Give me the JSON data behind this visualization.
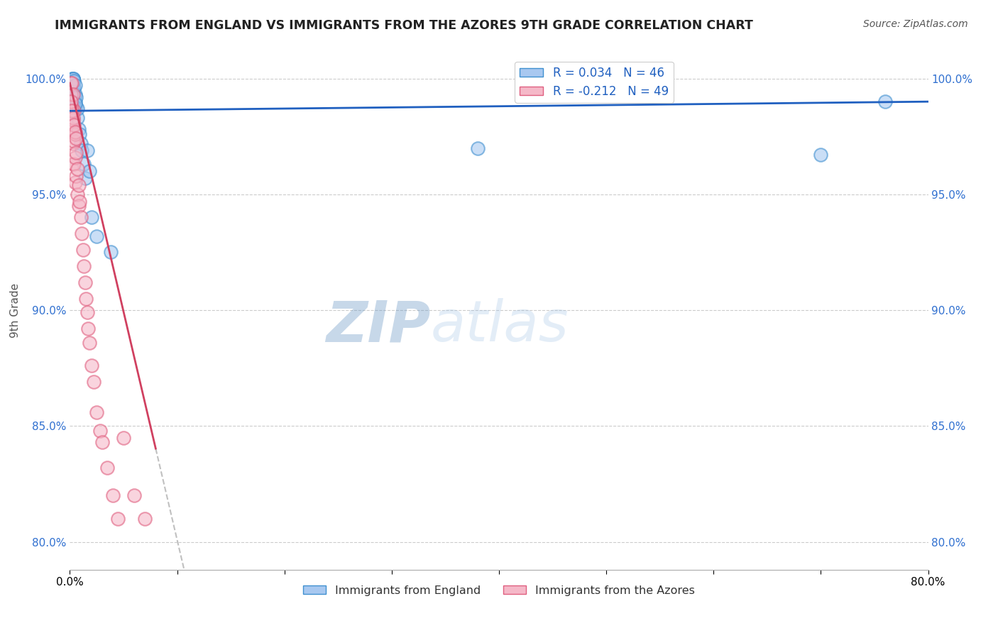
{
  "title": "IMMIGRANTS FROM ENGLAND VS IMMIGRANTS FROM THE AZORES 9TH GRADE CORRELATION CHART",
  "source": "Source: ZipAtlas.com",
  "ylabel": "9th Grade",
  "xlim": [
    0.0,
    0.8
  ],
  "ylim": [
    0.788,
    1.012
  ],
  "yticks": [
    0.8,
    0.85,
    0.9,
    0.95,
    1.0
  ],
  "ytick_labels": [
    "80.0%",
    "85.0%",
    "90.0%",
    "95.0%",
    "100.0%"
  ],
  "xticks": [
    0.0,
    0.1,
    0.2,
    0.3,
    0.4,
    0.5,
    0.6,
    0.7,
    0.8
  ],
  "xtick_labels": [
    "0.0%",
    "",
    "",
    "",
    "",
    "",
    "",
    "",
    "80.0%"
  ],
  "blue_color": "#a8c8f0",
  "blue_edge_color": "#4090d0",
  "blue_line_color": "#2060c0",
  "pink_color": "#f5b8c8",
  "pink_edge_color": "#e06080",
  "pink_line_color": "#d04060",
  "blue_legend_label": "R = 0.034   N = 46",
  "pink_legend_label": "R = -0.212   N = 49",
  "legend_label_england": "Immigrants from England",
  "legend_label_azores": "Immigrants from the Azores",
  "watermark_zip": "ZIP",
  "watermark_atlas": "atlas",
  "blue_x": [
    0.001,
    0.001,
    0.002,
    0.002,
    0.002,
    0.002,
    0.002,
    0.003,
    0.003,
    0.003,
    0.003,
    0.003,
    0.003,
    0.003,
    0.003,
    0.003,
    0.004,
    0.004,
    0.004,
    0.004,
    0.005,
    0.005,
    0.005,
    0.006,
    0.006,
    0.007,
    0.007,
    0.008,
    0.009,
    0.01,
    0.011,
    0.013,
    0.014,
    0.016,
    0.018,
    0.02,
    0.025,
    0.038,
    0.38,
    0.7,
    0.76,
    0.001,
    0.002,
    0.003,
    0.004,
    0.005
  ],
  "blue_y": [
    0.99,
    0.998,
    0.994,
    0.997,
    0.999,
    1.0,
    0.999,
    0.989,
    0.991,
    0.993,
    0.995,
    0.997,
    0.999,
    1.0,
    1.0,
    1.0,
    0.99,
    0.993,
    0.996,
    0.999,
    0.99,
    0.993,
    0.997,
    0.988,
    0.992,
    0.983,
    0.987,
    0.978,
    0.976,
    0.972,
    0.969,
    0.963,
    0.957,
    0.969,
    0.96,
    0.94,
    0.932,
    0.925,
    0.97,
    0.967,
    0.99,
    0.985,
    0.986,
    0.987,
    0.988,
    0.989
  ],
  "pink_x": [
    0.001,
    0.001,
    0.001,
    0.002,
    0.002,
    0.002,
    0.003,
    0.003,
    0.003,
    0.003,
    0.004,
    0.004,
    0.004,
    0.005,
    0.005,
    0.005,
    0.006,
    0.006,
    0.007,
    0.007,
    0.008,
    0.008,
    0.009,
    0.01,
    0.011,
    0.012,
    0.013,
    0.014,
    0.015,
    0.016,
    0.017,
    0.018,
    0.02,
    0.022,
    0.025,
    0.028,
    0.03,
    0.035,
    0.04,
    0.045,
    0.05,
    0.06,
    0.07,
    0.001,
    0.002,
    0.003,
    0.004,
    0.005,
    0.006
  ],
  "pink_y": [
    0.998,
    0.993,
    0.985,
    0.998,
    0.988,
    0.978,
    0.993,
    0.982,
    0.972,
    0.963,
    0.986,
    0.973,
    0.963,
    0.976,
    0.966,
    0.955,
    0.968,
    0.958,
    0.961,
    0.95,
    0.954,
    0.945,
    0.947,
    0.94,
    0.933,
    0.926,
    0.919,
    0.912,
    0.905,
    0.899,
    0.892,
    0.886,
    0.876,
    0.869,
    0.856,
    0.848,
    0.843,
    0.832,
    0.82,
    0.81,
    0.845,
    0.82,
    0.81,
    0.99,
    0.986,
    0.983,
    0.98,
    0.977,
    0.974
  ]
}
